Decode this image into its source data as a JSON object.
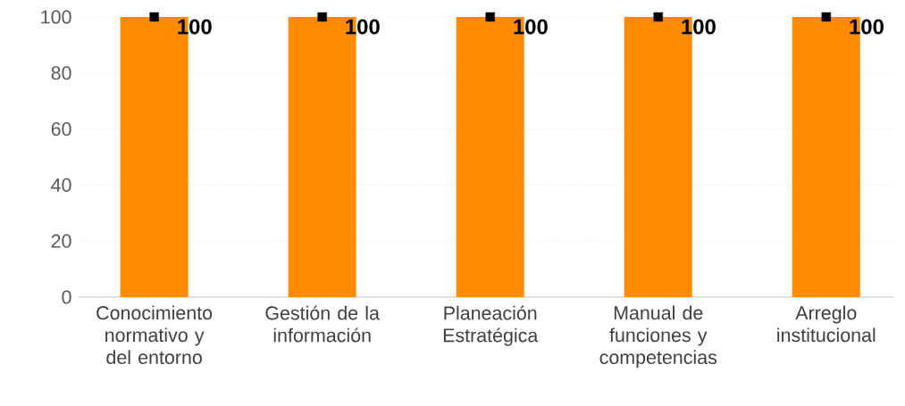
{
  "chart_data": {
    "type": "bar",
    "categories": [
      "Conocimiento normativo y del entorno",
      "Gestión de la información",
      "Planeación Estratégica",
      "Manual de funciones y competencias",
      "Arreglo institucional"
    ],
    "series": [
      {
        "color": "#ff8c00",
        "values": [
          100,
          100,
          100,
          100,
          100
        ],
        "value_labels": [
          "100",
          "100",
          "100",
          "100",
          "100"
        ]
      },
      {
        "type": "scatter",
        "marker": "square",
        "color": "#000000",
        "values": [
          100,
          100,
          100,
          100,
          100
        ]
      }
    ],
    "ylim": [
      0,
      100
    ],
    "yticks": [
      0,
      20,
      40,
      60,
      80,
      100
    ],
    "grid": "y"
  }
}
